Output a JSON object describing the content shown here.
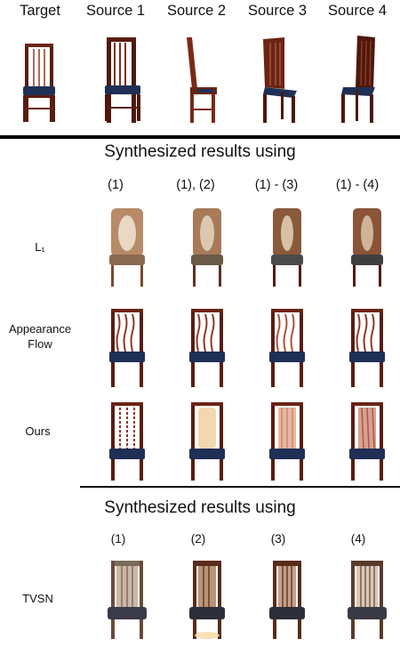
{
  "headers": [
    "Target",
    "Source 1",
    "Source 2",
    "Source 3",
    "Source 4"
  ],
  "section1": {
    "title": "Synthesized results using",
    "columns": [
      "(1)",
      "(1), (2)",
      "(1) - (3)",
      "(1) - (4)"
    ]
  },
  "rows": {
    "l1": "L₁",
    "appearance_flow": "Appearance\nFlow",
    "ours": "Ours"
  },
  "section2": {
    "title": "Synthesized results using",
    "columns": [
      "(1)",
      "(2)",
      "(3)",
      "(4)"
    ]
  },
  "tvsn": "TVSN"
}
